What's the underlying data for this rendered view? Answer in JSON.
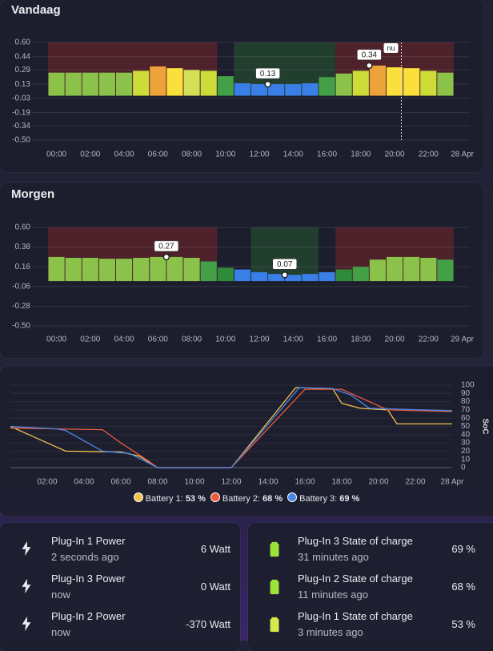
{
  "vandaag": {
    "type": "bar",
    "title": "Vandaag",
    "x": [
      0,
      1,
      2,
      3,
      4,
      5,
      6,
      7,
      8,
      9,
      10,
      11,
      12,
      13,
      14,
      15,
      16,
      17,
      18,
      19,
      20,
      21,
      22,
      23
    ],
    "values": [
      0.26,
      0.26,
      0.26,
      0.26,
      0.26,
      0.28,
      0.33,
      0.31,
      0.29,
      0.28,
      0.22,
      0.14,
      0.13,
      0.13,
      0.13,
      0.14,
      0.21,
      0.25,
      0.28,
      0.34,
      0.32,
      0.31,
      0.28,
      0.26
    ],
    "colors": [
      "#8bc34a",
      "#8bc34a",
      "#8bc34a",
      "#8bc34a",
      "#8bc34a",
      "#cddc39",
      "#eea23a",
      "#fbe03c",
      "#d4e157",
      "#cddc39",
      "#43a047",
      "#3a7ee8",
      "#3a7ee8",
      "#3a7ee8",
      "#3a7ee8",
      "#3a7ee8",
      "#43a047",
      "#8bc34a",
      "#cddc39",
      "#eea23a",
      "#fbe03c",
      "#fbe03c",
      "#cddc39",
      "#8bc34a"
    ],
    "xlim": [
      -0.5,
      23.5
    ],
    "xticks": [
      {
        "value": 0,
        "label": "00:00"
      },
      {
        "value": 2,
        "label": "02:00"
      },
      {
        "value": 4,
        "label": "04:00"
      },
      {
        "value": 6,
        "label": "06:00"
      },
      {
        "value": 8,
        "label": "08:00"
      },
      {
        "value": 10,
        "label": "10:00"
      },
      {
        "value": 12,
        "label": "12:00"
      },
      {
        "value": 14,
        "label": "14:00"
      },
      {
        "value": 16,
        "label": "16:00"
      },
      {
        "value": 18,
        "label": "18:00"
      },
      {
        "value": 20,
        "label": "20:00"
      },
      {
        "value": 22,
        "label": "22:00"
      },
      {
        "value": 24,
        "label": "28 Apr"
      }
    ],
    "ylim": [
      -0.5,
      0.6
    ],
    "yticks": [
      {
        "value": 0.6,
        "label": "0.60"
      },
      0.44,
      0.29,
      0.13,
      -0.03,
      -0.19,
      -0.34,
      {
        "value": -0.5,
        "label": "-0.50"
      }
    ],
    "markers": [
      {
        "x": 12.5,
        "value": 0.13
      },
      {
        "x": 18.5,
        "value": 0.34
      }
    ],
    "now": {
      "x": 20.4,
      "label": "nu"
    }
  },
  "morgen": {
    "type": "bar",
    "title": "Morgen",
    "x": [
      0,
      1,
      2,
      3,
      4,
      5,
      6,
      7,
      8,
      9,
      10,
      11,
      12,
      13,
      14,
      15,
      16,
      17,
      18,
      19,
      20,
      21,
      22,
      23
    ],
    "values": [
      0.27,
      0.26,
      0.26,
      0.25,
      0.25,
      0.26,
      0.27,
      0.27,
      0.26,
      0.22,
      0.15,
      0.13,
      0.1,
      0.08,
      0.07,
      0.08,
      0.1,
      0.13,
      0.16,
      0.24,
      0.27,
      0.27,
      0.26,
      0.24
    ],
    "colors": [
      "#8bc34a",
      "#8bc34a",
      "#8bc34a",
      "#8bc34a",
      "#8bc34a",
      "#8bc34a",
      "#8bc34a",
      "#8bc34a",
      "#8bc34a",
      "#43a047",
      "#2e8b3a",
      "#3a7ee8",
      "#3a7ee8",
      "#3a7ee8",
      "#3a7ee8",
      "#3a7ee8",
      "#3a7ee8",
      "#2e8b3a",
      "#43a047",
      "#8bc34a",
      "#8bc34a",
      "#8bc34a",
      "#8bc34a",
      "#43a047"
    ],
    "xlim": [
      -0.5,
      23.5
    ],
    "xticks": [
      {
        "value": 0,
        "label": "00:00"
      },
      {
        "value": 2,
        "label": "02:00"
      },
      {
        "value": 4,
        "label": "04:00"
      },
      {
        "value": 6,
        "label": "06:00"
      },
      {
        "value": 8,
        "label": "08:00"
      },
      {
        "value": 10,
        "label": "10:00"
      },
      {
        "value": 12,
        "label": "12:00"
      },
      {
        "value": 14,
        "label": "14:00"
      },
      {
        "value": 16,
        "label": "16:00"
      },
      {
        "value": 18,
        "label": "18:00"
      },
      {
        "value": 20,
        "label": "20:00"
      },
      {
        "value": 22,
        "label": "22:00"
      },
      {
        "value": 24,
        "label": "29 Apr"
      }
    ],
    "ylim": [
      -0.5,
      0.6
    ],
    "yticks": [
      {
        "value": 0.6,
        "label": "0.60"
      },
      0.38,
      0.16,
      -0.06,
      -0.28,
      {
        "value": -0.5,
        "label": "-0.50"
      }
    ],
    "markers": [
      {
        "x": 6.5,
        "value": 0.27
      },
      {
        "x": 13.5,
        "value": 0.07
      }
    ]
  },
  "battery": {
    "type": "line",
    "y_label": "SoC",
    "series": [
      {
        "name": "Battery 1:",
        "current": "53 %",
        "color": "#f2c14e",
        "x": [
          0,
          1.5,
          3,
          6,
          7,
          8,
          12,
          15.5,
          17.5,
          18,
          19,
          20.5,
          21,
          24
        ],
        "values": [
          50,
          35,
          20,
          19,
          14,
          0,
          0,
          97,
          96,
          78,
          72,
          70,
          53,
          53
        ]
      },
      {
        "name": "Battery 2:",
        "current": "68 %",
        "color": "#ef5b3c",
        "x": [
          0,
          5,
          6,
          7.5,
          8,
          12,
          16,
          18,
          19,
          20.5,
          24
        ],
        "values": [
          48,
          46,
          30,
          8,
          0,
          0,
          95,
          95,
          85,
          70,
          68
        ]
      },
      {
        "name": "Battery 3:",
        "current": "69 %",
        "color": "#4a86e8",
        "x": [
          0,
          2.5,
          3,
          5,
          6.5,
          8,
          12,
          15.7,
          17.5,
          18.5,
          19.5,
          24
        ],
        "values": [
          50,
          47,
          45,
          20,
          17,
          0,
          0,
          97,
          96,
          88,
          72,
          69
        ]
      }
    ],
    "xlim": [
      0,
      24
    ],
    "xticks": [
      {
        "value": 2,
        "label": "02:00"
      },
      {
        "value": 4,
        "label": "04:00"
      },
      {
        "value": 6,
        "label": "06:00"
      },
      {
        "value": 8,
        "label": "08:00"
      },
      {
        "value": 10,
        "label": "10:00"
      },
      {
        "value": 12,
        "label": "12:00"
      },
      {
        "value": 14,
        "label": "14:00"
      },
      {
        "value": 16,
        "label": "16:00"
      },
      {
        "value": 18,
        "label": "18:00"
      },
      {
        "value": 20,
        "label": "20:00"
      },
      {
        "value": 22,
        "label": "22:00"
      },
      {
        "value": 24,
        "label": "28 Apr"
      }
    ],
    "ylim": [
      0,
      100
    ],
    "yticks": [
      0,
      10,
      20,
      30,
      40,
      50,
      60,
      70,
      80,
      90,
      100
    ]
  },
  "power_card": {
    "entities": [
      {
        "name": "Plug-In 1 Power",
        "time": "2 seconds ago",
        "state": "6 Watt"
      },
      {
        "name": "Plug-In 3 Power",
        "time": "now",
        "state": "0 Watt"
      },
      {
        "name": "Plug-In 2 Power",
        "time": "now",
        "state": "-370 Watt"
      }
    ]
  },
  "soc_card": {
    "entities": [
      {
        "name": "Plug-In 3 State of charge",
        "time": "31 minutes ago",
        "state": "69 %",
        "color": "#9be23a"
      },
      {
        "name": "Plug-In 2 State of charge",
        "time": "11 minutes ago",
        "state": "68 %",
        "color": "#9be23a"
      },
      {
        "name": "Plug-In 1 State of charge",
        "time": "3 minutes ago",
        "state": "53 %",
        "color": "#d8e84a"
      }
    ]
  }
}
